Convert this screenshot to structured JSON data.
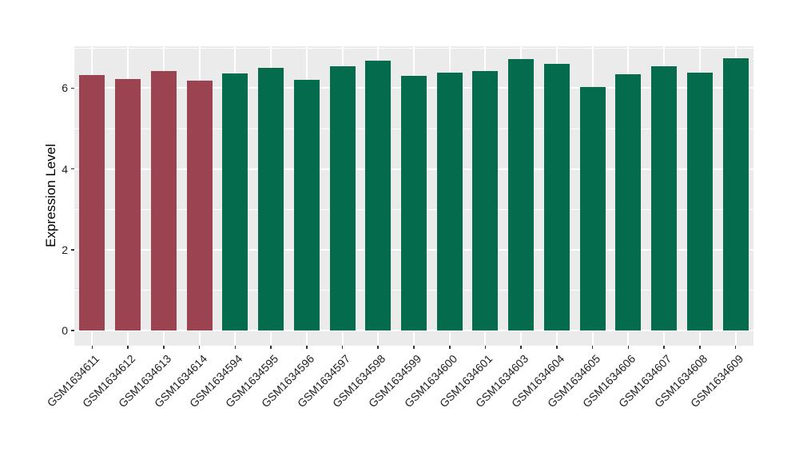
{
  "figure": {
    "background_color": "#FFFFFF",
    "panel_background_color": "#EBEBEB",
    "gridline_color": "#FFFFFF",
    "tick_mark_color": "#333333",
    "axis_text_color": "#1f1f1f",
    "axis_title_color": "#000000"
  },
  "chart_data": {
    "type": "bar",
    "title": "",
    "xlabel": "",
    "ylabel": "Expression Level",
    "ylim": [
      0,
      7.07
    ],
    "yticks": [
      0,
      2,
      4,
      6
    ],
    "yticks_minor": [
      1,
      3,
      5,
      7
    ],
    "grid": "white major+minor horizontal lines and white vertical line per category on gray panel",
    "legend_position": "none",
    "x_tick_label_rotation_deg": 45,
    "categories": [
      "GSM1634611",
      "GSM1634612",
      "GSM1634613",
      "GSM1634614",
      "GSM1634594",
      "GSM1634595",
      "GSM1634596",
      "GSM1634597",
      "GSM1634598",
      "GSM1634599",
      "GSM1634600",
      "GSM1634601",
      "GSM1634603",
      "GSM1634604",
      "GSM1634605",
      "GSM1634606",
      "GSM1634607",
      "GSM1634608",
      "GSM1634609"
    ],
    "values": [
      6.33,
      6.23,
      6.43,
      6.19,
      6.36,
      6.5,
      6.21,
      6.54,
      6.67,
      6.31,
      6.39,
      6.43,
      6.72,
      6.6,
      6.03,
      6.35,
      6.54,
      6.39,
      6.73
    ],
    "bar_groups": [
      "group1",
      "group1",
      "group1",
      "group1",
      "group2",
      "group2",
      "group2",
      "group2",
      "group2",
      "group2",
      "group2",
      "group2",
      "group2",
      "group2",
      "group2",
      "group2",
      "group2",
      "group2",
      "group2"
    ],
    "group_colors": {
      "group1": "#9C4352",
      "group2": "#046B4C"
    }
  }
}
